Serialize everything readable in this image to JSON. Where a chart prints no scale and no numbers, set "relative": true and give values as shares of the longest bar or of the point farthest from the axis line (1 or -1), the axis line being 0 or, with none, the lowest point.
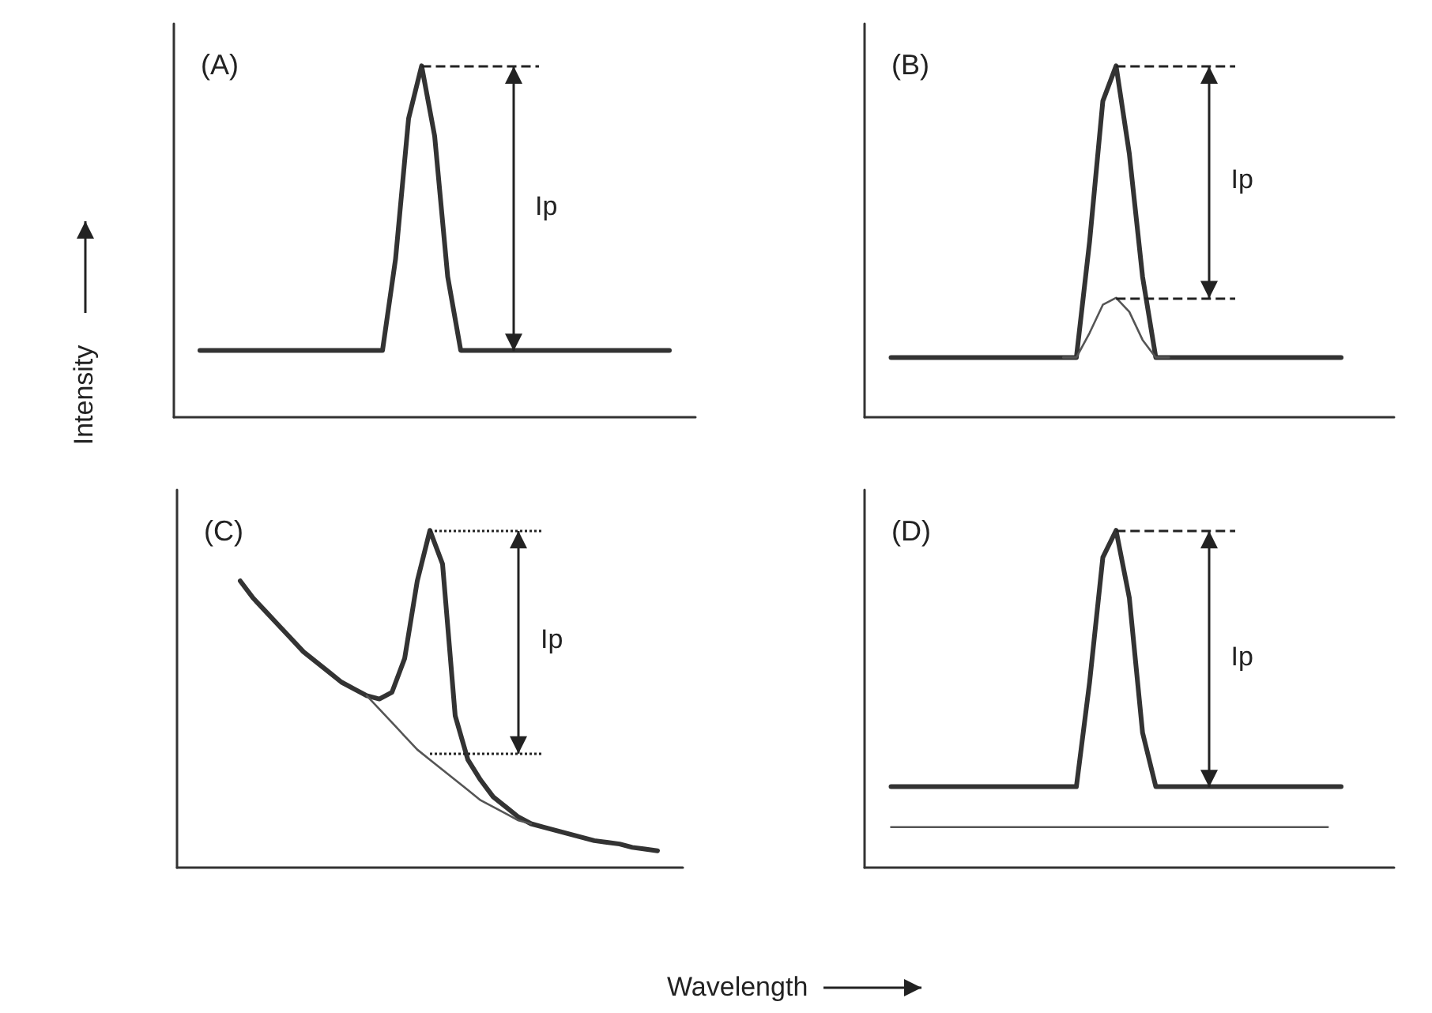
{
  "chart_data": [
    {
      "type": "line",
      "title": "(A)",
      "ylabel": "Intensity",
      "relative": true,
      "categories": [
        null,
        null,
        null,
        null,
        null,
        null,
        null,
        null,
        null,
        null,
        null,
        null,
        null,
        null,
        null,
        null,
        null,
        null,
        null,
        null,
        null,
        null,
        null,
        null,
        null,
        null,
        null,
        null,
        null,
        null,
        null,
        null,
        null,
        null,
        null,
        null,
        null,
        null,
        null,
        null,
        null
      ],
      "series": [
        {
          "color": "#333333",
          "values": [
            null,
            null,
            0.19,
            0.19,
            0.19,
            0.19,
            0.19,
            0.19,
            0.19,
            0.19,
            0.19,
            0.19,
            0.19,
            0.19,
            0.19,
            0.19,
            0.19,
            0.45,
            0.85,
            1,
            0.8,
            0.4,
            0.19,
            0.19,
            0.19,
            0.19,
            0.19,
            0.19,
            0.19,
            0.19,
            0.19,
            0.19,
            0.19,
            0.19,
            0.19,
            0.19,
            0.19,
            0.19,
            0.19,
            null,
            null
          ]
        }
      ],
      "ref_lines": [
        {
          "axis": "y",
          "value": 1,
          "line_style": "dashed"
        }
      ],
      "annotations": [
        "Ip"
      ]
    },
    {
      "type": "line",
      "title": "(B)",
      "relative": true,
      "categories": [
        null,
        null,
        null,
        null,
        null,
        null,
        null,
        null,
        null,
        null,
        null,
        null,
        null,
        null,
        null,
        null,
        null,
        null,
        null,
        null,
        null,
        null,
        null,
        null,
        null,
        null,
        null,
        null,
        null,
        null,
        null,
        null,
        null,
        null,
        null,
        null,
        null,
        null,
        null,
        null,
        null
      ],
      "series": [
        {
          "color": "#333333",
          "values": [
            null,
            null,
            0.17,
            0.17,
            0.17,
            0.17,
            0.17,
            0.17,
            0.17,
            0.17,
            0.17,
            0.17,
            0.17,
            0.17,
            0.17,
            0.17,
            0.17,
            0.5,
            0.9,
            1,
            0.75,
            0.4,
            0.17,
            0.17,
            0.17,
            0.17,
            0.17,
            0.17,
            0.17,
            0.17,
            0.17,
            0.17,
            0.17,
            0.17,
            0.17,
            0.17,
            0.17,
            null,
            null,
            null,
            null
          ]
        },
        {
          "color": "#555555",
          "values": [
            null,
            null,
            null,
            null,
            null,
            null,
            null,
            null,
            null,
            null,
            null,
            null,
            null,
            null,
            null,
            0.17,
            0.17,
            0.24,
            0.32,
            0.34,
            0.3,
            0.22,
            0.17,
            0.17,
            null,
            null,
            null,
            null,
            null,
            null,
            null,
            null,
            null,
            null,
            null,
            null,
            null,
            null,
            null,
            null,
            null
          ]
        }
      ],
      "ref_lines": [
        {
          "axis": "y",
          "value": 1,
          "line_style": "dashed"
        },
        {
          "axis": "y",
          "value": 0.34,
          "line_style": "dashed"
        }
      ],
      "annotations": [
        "Ip"
      ]
    },
    {
      "type": "line",
      "title": "(C)",
      "xlabel": "Wavelength",
      "relative": true,
      "categories": [
        null,
        null,
        null,
        null,
        null,
        null,
        null,
        null,
        null,
        null,
        null,
        null,
        null,
        null,
        null,
        null,
        null,
        null,
        null,
        null,
        null,
        null,
        null,
        null,
        null,
        null,
        null,
        null,
        null,
        null,
        null,
        null,
        null,
        null,
        null,
        null,
        null,
        null,
        null,
        null,
        null
      ],
      "series": [
        {
          "color": "#333333",
          "values": [
            null,
            null,
            null,
            null,
            null,
            0.85,
            0.8,
            0.76,
            0.72,
            0.68,
            0.64,
            0.61,
            0.58,
            0.55,
            0.53,
            0.51,
            0.5,
            0.52,
            0.62,
            0.85,
            1,
            0.9,
            0.45,
            0.32,
            0.26,
            0.21,
            0.18,
            0.15,
            0.13,
            0.12,
            0.11,
            0.1,
            0.09,
            0.08,
            0.075,
            0.07,
            0.06,
            0.055,
            0.05,
            null,
            null
          ]
        },
        {
          "color": "#555555",
          "values": [
            null,
            null,
            null,
            null,
            null,
            null,
            null,
            null,
            null,
            null,
            null,
            null,
            null,
            null,
            null,
            0.51,
            0.47,
            0.43,
            0.39,
            0.35,
            0.32,
            0.29,
            0.26,
            0.23,
            0.2,
            0.18,
            0.16,
            0.14,
            0.13,
            null,
            null,
            null,
            null,
            null,
            null,
            null,
            null,
            null,
            null,
            null,
            null
          ]
        }
      ],
      "ref_lines": [
        {
          "axis": "y",
          "value": 1,
          "line_style": "dotted"
        },
        {
          "axis": "y",
          "value": 0.34,
          "line_style": "dotted"
        }
      ],
      "annotations": [
        "Ip"
      ]
    },
    {
      "type": "line",
      "title": "(D)",
      "relative": true,
      "categories": [
        null,
        null,
        null,
        null,
        null,
        null,
        null,
        null,
        null,
        null,
        null,
        null,
        null,
        null,
        null,
        null,
        null,
        null,
        null,
        null,
        null,
        null,
        null,
        null,
        null,
        null,
        null,
        null,
        null,
        null,
        null,
        null,
        null,
        null,
        null,
        null,
        null,
        null,
        null,
        null,
        null
      ],
      "series": [
        {
          "color": "#333333",
          "values": [
            null,
            null,
            0.24,
            0.24,
            0.24,
            0.24,
            0.24,
            0.24,
            0.24,
            0.24,
            0.24,
            0.24,
            0.24,
            0.24,
            0.24,
            0.24,
            0.24,
            0.55,
            0.92,
            1,
            0.8,
            0.4,
            0.24,
            0.24,
            0.24,
            0.24,
            0.24,
            0.24,
            0.24,
            0.24,
            0.24,
            0.24,
            0.24,
            0.24,
            0.24,
            0.24,
            0.24,
            null,
            null,
            null,
            null
          ]
        },
        {
          "color": "#555555",
          "values": [
            null,
            null,
            0.12,
            0.12,
            0.12,
            0.12,
            0.12,
            0.12,
            0.12,
            0.12,
            0.12,
            0.12,
            0.12,
            0.12,
            0.12,
            0.12,
            0.12,
            0.12,
            0.12,
            0.12,
            0.12,
            0.12,
            0.12,
            0.12,
            0.12,
            0.12,
            0.12,
            0.12,
            0.12,
            0.12,
            0.12,
            0.12,
            0.12,
            0.12,
            0.12,
            0.12,
            null,
            null,
            null,
            null,
            null
          ]
        }
      ],
      "ref_lines": [
        {
          "axis": "y",
          "value": 1,
          "line_style": "dashed"
        }
      ],
      "annotations": [
        "Ip"
      ]
    }
  ]
}
